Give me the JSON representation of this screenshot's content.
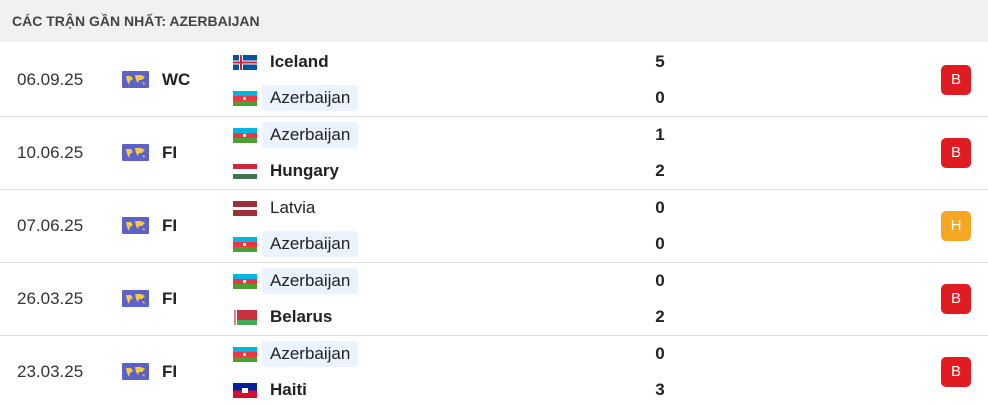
{
  "header": {
    "title": "CÁC TRẬN GẦN NHẤT: AZERBAIJAN"
  },
  "matches": [
    {
      "date": "06.09.25",
      "competition": "WC",
      "home": {
        "team": "Iceland",
        "score": 5
      },
      "away": {
        "team": "Azerbaijan",
        "score": 0
      },
      "result": "B"
    },
    {
      "date": "10.06.25",
      "competition": "FI",
      "home": {
        "team": "Azerbaijan",
        "score": 1
      },
      "away": {
        "team": "Hungary",
        "score": 2
      },
      "result": "B"
    },
    {
      "date": "07.06.25",
      "competition": "FI",
      "home": {
        "team": "Latvia",
        "score": 0
      },
      "away": {
        "team": "Azerbaijan",
        "score": 0
      },
      "result": "H"
    },
    {
      "date": "26.03.25",
      "competition": "FI",
      "home": {
        "team": "Azerbaijan",
        "score": 0
      },
      "away": {
        "team": "Belarus",
        "score": 2
      },
      "result": "B"
    },
    {
      "date": "23.03.25",
      "competition": "FI",
      "home": {
        "team": "Azerbaijan",
        "score": 0
      },
      "away": {
        "team": "Haiti",
        "score": 3
      },
      "result": "B"
    }
  ]
}
